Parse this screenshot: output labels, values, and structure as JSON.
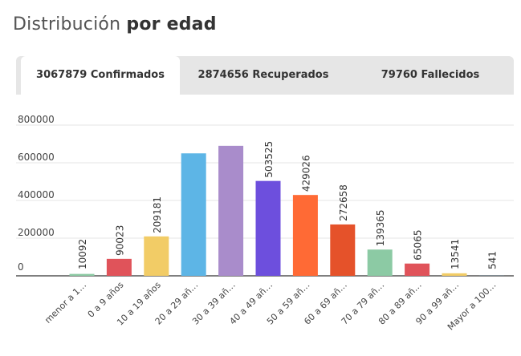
{
  "header": {
    "title_light": "Distribución",
    "title_bold": "por edad"
  },
  "tabs": [
    {
      "label": "3067879 Confirmados",
      "active": true
    },
    {
      "label": "2874656 Recuperados",
      "active": false
    },
    {
      "label": "79760 Fallecidos",
      "active": false
    }
  ],
  "chart_data": {
    "type": "bar",
    "title": "",
    "xlabel": "",
    "ylabel": "",
    "ylim": [
      0,
      800000
    ],
    "yticks": [
      0,
      200000,
      400000,
      600000,
      800000
    ],
    "ytick_labels": [
      "0",
      "200000",
      "400000",
      "600000",
      "800000"
    ],
    "grid": true,
    "categories": [
      "menor a 1…",
      "0 a 9 años",
      "10 a 19 años",
      "20 a 29 añ…",
      "30 a 39 añ…",
      "40 a 49 añ…",
      "50 a 59 añ…",
      "60 a 69 añ…",
      "70 a 79 añ…",
      "80 a 89 añ…",
      "90 a 99 añ…",
      "Mayor a 100…"
    ],
    "values": [
      10092,
      90023,
      209181,
      650000,
      690000,
      503525,
      429026,
      272658,
      139365,
      65065,
      13541,
      541
    ],
    "data_labels": [
      "10092",
      "90023",
      "209181",
      "",
      "",
      "503525",
      "429026",
      "272658",
      "139365",
      "65065",
      "13541",
      "541"
    ],
    "colors": [
      "#8ccaa4",
      "#e0535a",
      "#f2cc66",
      "#5db5e6",
      "#a98ccb",
      "#6d4fdd",
      "#ff6a35",
      "#e5522a",
      "#8ccaa4",
      "#e0535a",
      "#f2cc66",
      "#5db5e6"
    ]
  }
}
